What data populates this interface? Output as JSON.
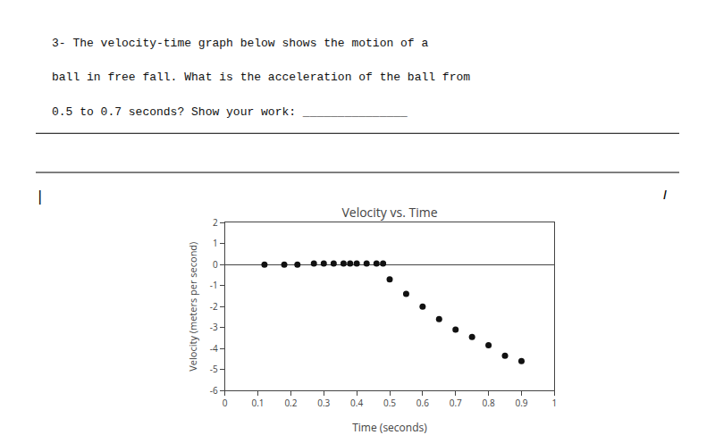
{
  "chart_data": {
    "type": "scatter",
    "title": "Velocity vs. Time",
    "xlabel": "Time (seconds)",
    "ylabel": "Velocity (meters per second)",
    "x": [
      0.12,
      0.18,
      0.22,
      0.27,
      0.3,
      0.33,
      0.36,
      0.38,
      0.4,
      0.43,
      0.46,
      0.48,
      0.5,
      0.55,
      0.6,
      0.65,
      0.7,
      0.75,
      0.8,
      0.85,
      0.9
    ],
    "values": [
      0.0,
      0.0,
      0.0,
      0.05,
      0.05,
      0.05,
      0.05,
      0.05,
      0.05,
      0.05,
      0.05,
      0.05,
      -0.7,
      -1.4,
      -2.0,
      -2.6,
      -3.1,
      -3.45,
      -3.85,
      -4.35,
      -4.6
    ],
    "color": "#111111",
    "xlim": [
      0,
      1
    ],
    "ylim": [
      -6,
      2
    ],
    "xticks": [
      0,
      0.1,
      0.2,
      0.3,
      0.4,
      0.5,
      0.6,
      0.7,
      0.8,
      0.9,
      1
    ],
    "yticks": [
      -6,
      -5,
      -4,
      -3,
      -2,
      -1,
      0,
      1,
      2
    ],
    "grid": false,
    "annotations": [
      "3- The velocity-time graph below shows the motion of a",
      "ball in free fall. What is the acceleration of the ball from",
      "0.5 to 0.7 seconds? Show your work: _______________",
      "|",
      "I"
    ]
  }
}
